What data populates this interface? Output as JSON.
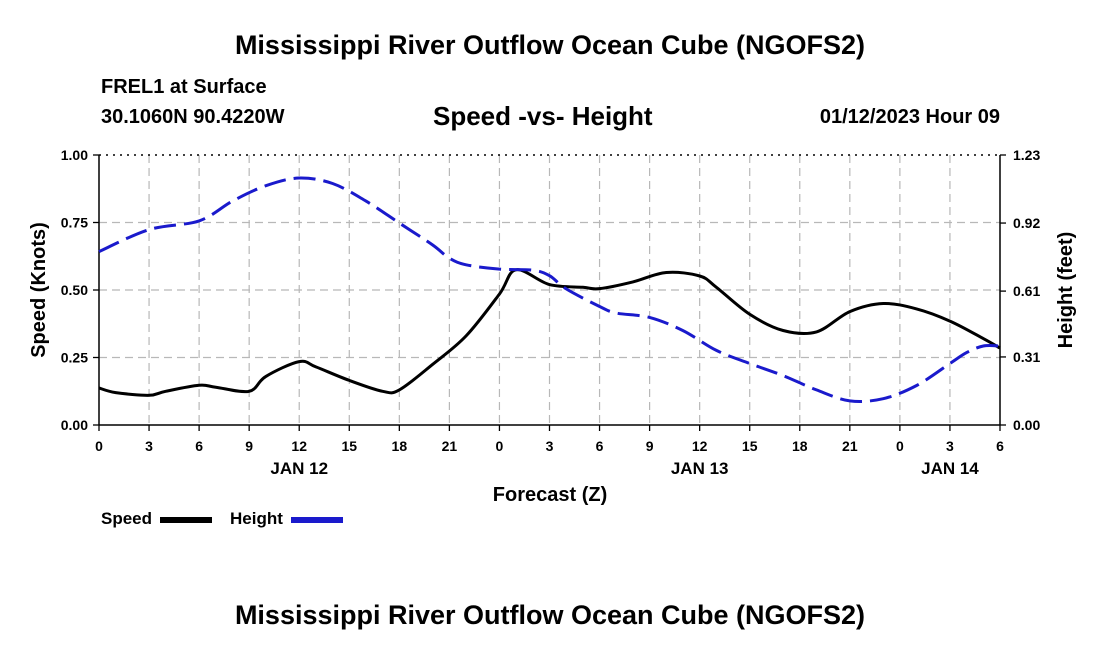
{
  "page": {
    "title": "Mississippi River Outflow Ocean Cube (NGOFS2)",
    "footer_title": "Mississippi River Outflow Ocean Cube (NGOFS2)",
    "station": "FREL1 at Surface",
    "coords": "30.1060N  90.4220W",
    "datetime": "01/12/2023 Hour 09"
  },
  "chart_data": {
    "type": "line",
    "title": "Speed -vs- Height",
    "xlabel": "Forecast (Z)",
    "ylabel": "Speed (Knots)",
    "y2label": "Height (feet)",
    "x_unit": "hours since 01/12 00Z",
    "xlim": [
      0,
      54
    ],
    "ylim": [
      0,
      1.0
    ],
    "y2lim": [
      0,
      1.23
    ],
    "x_ticks": [
      0,
      3,
      6,
      9,
      12,
      15,
      18,
      21,
      24,
      27,
      30,
      33,
      36,
      39,
      42,
      45,
      48,
      51,
      54
    ],
    "x_tick_labels": [
      "0",
      "3",
      "6",
      "9",
      "12",
      "15",
      "18",
      "21",
      "0",
      "3",
      "6",
      "9",
      "12",
      "15",
      "18",
      "21",
      "0",
      "3",
      "6"
    ],
    "date_labels": [
      {
        "x": 12,
        "label": "JAN 12"
      },
      {
        "x": 36,
        "label": "JAN 13"
      },
      {
        "x": 51,
        "label": "JAN 14"
      }
    ],
    "y_ticks": [
      0,
      0.25,
      0.5,
      0.75,
      1.0
    ],
    "y_tick_labels": [
      "0.00",
      "0.25",
      "0.50",
      "0.75",
      "1.00"
    ],
    "y2_ticks": [
      0,
      0.31,
      0.61,
      0.92,
      1.23
    ],
    "y2_tick_labels": [
      "0.00",
      "0.31",
      "0.61",
      "0.92",
      "1.23"
    ],
    "grid": true,
    "series": [
      {
        "name": "Speed",
        "axis": "left",
        "color": "#000000",
        "style": "solid",
        "x": [
          0,
          1,
          3,
          4,
          6,
          7,
          9,
          10,
          12,
          13,
          15,
          17,
          18,
          20,
          22,
          24,
          25,
          27,
          29,
          30,
          32,
          34,
          36,
          37,
          39,
          41,
          43,
          45,
          47,
          49,
          51,
          53,
          54
        ],
        "values": [
          0.137,
          0.12,
          0.11,
          0.125,
          0.147,
          0.14,
          0.125,
          0.18,
          0.235,
          0.215,
          0.165,
          0.125,
          0.13,
          0.225,
          0.33,
          0.485,
          0.575,
          0.52,
          0.51,
          0.505,
          0.53,
          0.565,
          0.552,
          0.51,
          0.41,
          0.35,
          0.345,
          0.42,
          0.45,
          0.43,
          0.385,
          0.32,
          0.285
        ]
      },
      {
        "name": "Height",
        "axis": "right",
        "color": "#1a1acc",
        "style": "dashed",
        "x": [
          0,
          3,
          6,
          8,
          10,
          12,
          14,
          16,
          18,
          20,
          21,
          22,
          24,
          26,
          27,
          28,
          30,
          31,
          33,
          35,
          37,
          39,
          41,
          43,
          45,
          47,
          49,
          51,
          52,
          53,
          54
        ],
        "values": [
          0.79,
          0.89,
          0.93,
          1.02,
          1.09,
          1.125,
          1.1,
          1.02,
          0.92,
          0.82,
          0.76,
          0.73,
          0.71,
          0.705,
          0.68,
          0.62,
          0.54,
          0.51,
          0.49,
          0.43,
          0.34,
          0.28,
          0.225,
          0.16,
          0.11,
          0.12,
          0.18,
          0.28,
          0.33,
          0.36,
          0.36
        ]
      }
    ],
    "legend": [
      {
        "label": "Speed",
        "color": "#000000"
      },
      {
        "label": "Height",
        "color": "#1a1acc"
      }
    ]
  }
}
